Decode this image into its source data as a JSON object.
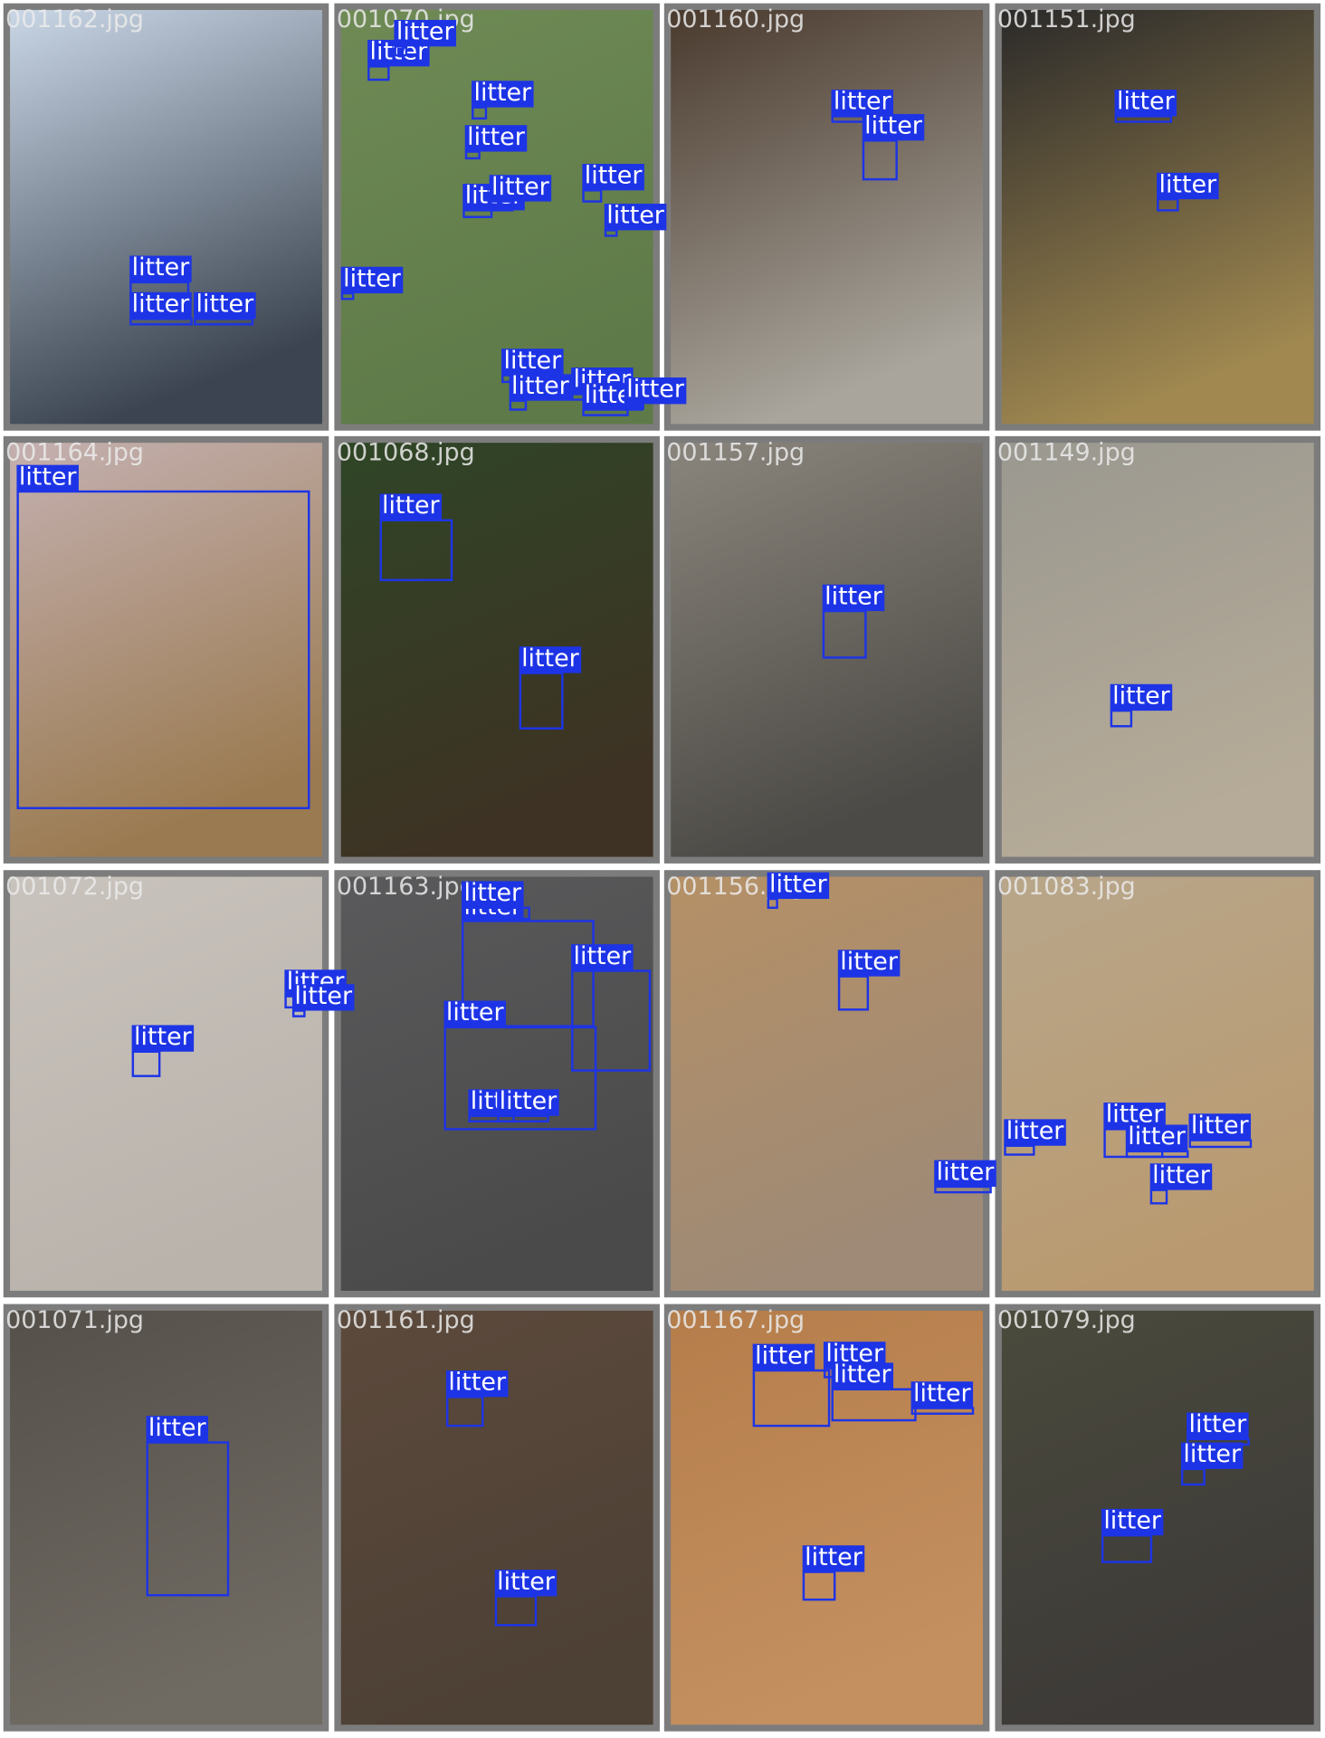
{
  "tiles": [
    {
      "filename": "001162.jpg",
      "labels": [
        "litter",
        "litter",
        "litter"
      ]
    },
    {
      "filename": "001070.jpg",
      "labels": [
        "litter",
        "litter",
        "litter",
        "litter",
        "litter",
        "litter",
        "litter",
        "litter",
        "litter",
        "litter",
        "litter",
        "litter",
        "litter",
        "litter"
      ]
    },
    {
      "filename": "001160.jpg",
      "labels": [
        "litter",
        "litter"
      ]
    },
    {
      "filename": "001151.jpg",
      "labels": [
        "litter",
        "litter"
      ]
    },
    {
      "filename": "001164.jpg",
      "labels": [
        "litter"
      ]
    },
    {
      "filename": "001068.jpg",
      "labels": [
        "litter",
        "litter"
      ]
    },
    {
      "filename": "001157.jpg",
      "labels": [
        "litter"
      ]
    },
    {
      "filename": "001149.jpg",
      "labels": [
        "litter"
      ]
    },
    {
      "filename": "001072.jpg",
      "labels": [
        "litter",
        "litter",
        "litter"
      ]
    },
    {
      "filename": "001163.jpg",
      "labels": [
        "litter",
        "litter",
        "litter",
        "litter",
        "litter",
        "litter"
      ]
    },
    {
      "filename": "001156.jpg",
      "labels": [
        "litter",
        "litter",
        "litter"
      ]
    },
    {
      "filename": "001083.jpg",
      "labels": [
        "litter",
        "litter",
        "litter",
        "litter",
        "litter"
      ]
    },
    {
      "filename": "001071.jpg",
      "labels": [
        "litter"
      ]
    },
    {
      "filename": "001161.jpg",
      "labels": [
        "litter",
        "litter"
      ]
    },
    {
      "filename": "001167.jpg",
      "labels": [
        "litter",
        "litter",
        "litter",
        "litter",
        "litter"
      ]
    },
    {
      "filename": "001079.jpg",
      "labels": [
        "litter",
        "litter",
        "litter"
      ]
    }
  ]
}
